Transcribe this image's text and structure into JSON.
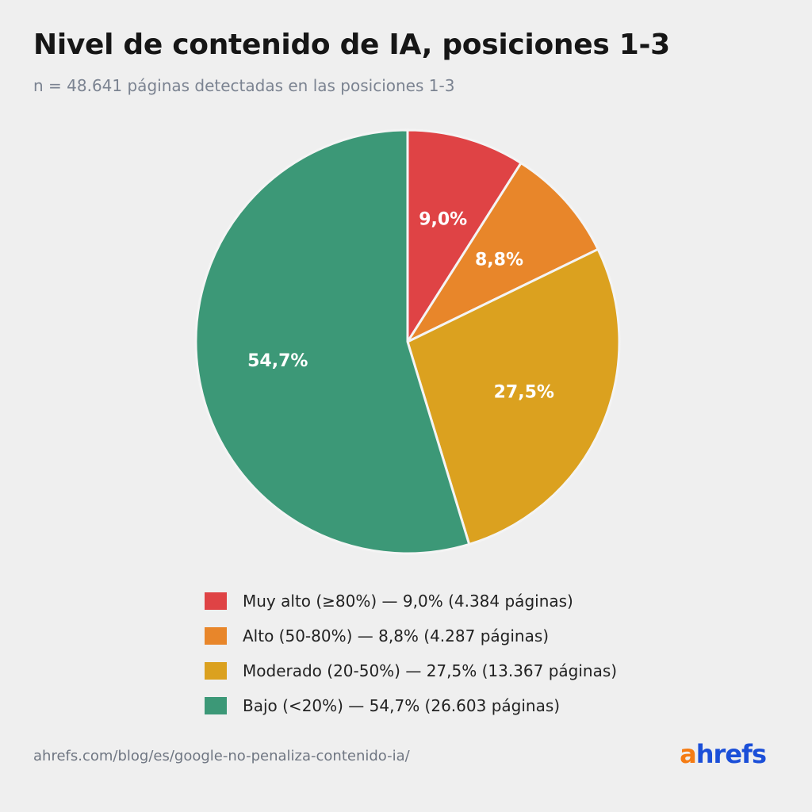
{
  "chart_data": {
    "type": "pie",
    "title": "Nivel de contenido de IA, posiciones 1-3",
    "subtitle": "n = 48.641 páginas detectadas en las posiciones 1-3",
    "start_angle_deg": 0,
    "direction": "clockwise",
    "legend_position": "bottom",
    "slices": [
      {
        "name": "Muy alto (≥80%)",
        "value": 9.0,
        "label": "9,0%",
        "legend": "Muy alto (≥80%) — 9,0% (4.384 páginas)",
        "pages": 4384,
        "color": "#df4345"
      },
      {
        "name": "Alto (50-80%)",
        "value": 8.8,
        "label": "8,8%",
        "legend": "Alto (50-80%) — 8,8% (4.287 páginas)",
        "pages": 4287,
        "color": "#e8862a"
      },
      {
        "name": "Moderado (20-50%)",
        "value": 27.5,
        "label": "27,5%",
        "legend": "Moderado (20-50%) — 27,5% (13.367 páginas)",
        "pages": 13367,
        "color": "#dba11f"
      },
      {
        "name": "Bajo (<20%)",
        "value": 54.7,
        "label": "54,7%",
        "legend": "Bajo (<20%) — 54,7% (26.603 páginas)",
        "pages": 26603,
        "color": "#3c9877"
      }
    ]
  },
  "footer": {
    "source": "ahrefs.com/blog/es/google-no-penaliza-contenido-ia/",
    "logo_a": "a",
    "logo_rest": "hrefs"
  }
}
